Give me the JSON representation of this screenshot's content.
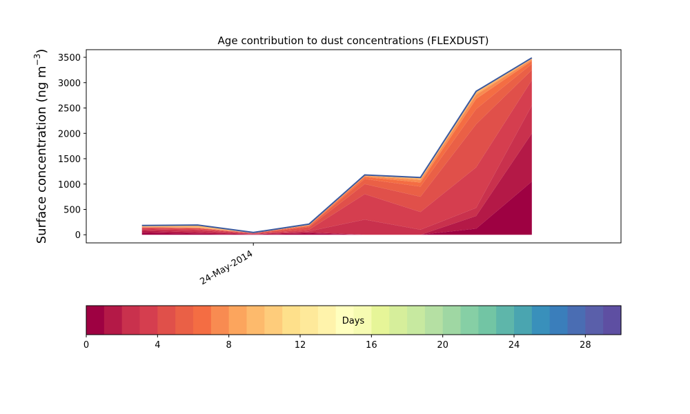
{
  "chart_data": {
    "type": "area",
    "title": "Age contribution to dust concentrations (FLEXDUST)",
    "ylabel": "Surface concentration (ng m",
    "ylabel_superscript": "−3",
    "ylabel_suffix": ")",
    "xlabel": "",
    "ylim": [
      -160,
      3650
    ],
    "yticks": [
      0,
      500,
      1000,
      1500,
      2000,
      2500,
      3000,
      3500
    ],
    "x_ticks": [
      {
        "x": 24.0,
        "label": "24-May-2014"
      }
    ],
    "x": [
      22.0,
      23.0,
      24.0,
      25.0,
      26.0,
      27.0,
      28.0,
      29.0
    ],
    "stacked_series": [
      [
        40,
        20,
        5,
        25,
        0,
        0,
        120,
        1050
      ],
      [
        40,
        30,
        5,
        25,
        0,
        0,
        250,
        950
      ],
      [
        30,
        40,
        5,
        20,
        300,
        100,
        160,
        550
      ],
      [
        20,
        20,
        10,
        30,
        500,
        350,
        800,
        500
      ],
      [
        15,
        20,
        5,
        50,
        200,
        300,
        850,
        200
      ],
      [
        5,
        5,
        5,
        20,
        100,
        200,
        300,
        120
      ],
      [
        3,
        5,
        2,
        10,
        40,
        80,
        200,
        60
      ],
      [
        3,
        5,
        2,
        10,
        20,
        50,
        80,
        30
      ],
      [
        2,
        3,
        1,
        5,
        10,
        20,
        30,
        10
      ],
      [
        25,
        45,
        5,
        15,
        10,
        30,
        40,
        20
      ]
    ],
    "total": [
      183,
      193,
      45,
      210,
      1180,
      1130,
      2830,
      3490
    ],
    "outline_color": "#3b5aa0",
    "colorbar": {
      "label": "Days",
      "ticks": [
        0,
        4,
        8,
        12,
        16,
        20,
        24,
        28
      ],
      "min": 0,
      "max": 30,
      "colors": [
        "#9e0142",
        "#b41947",
        "#c9314d",
        "#d53e4f",
        "#e0504a",
        "#ea6046",
        "#f46d43",
        "#f88b51",
        "#fca55d",
        "#fdba6c",
        "#fecc7b",
        "#fee08b",
        "#fee99a",
        "#fff3ab",
        "#ffffbf",
        "#f6fbb2",
        "#e6f598",
        "#d6ee9b",
        "#c7e9a0",
        "#b5e0a3",
        "#9fd7a3",
        "#86cfa5",
        "#72c5a4",
        "#5eb6aa",
        "#4aa5b0",
        "#3990bb",
        "#3a7ebb",
        "#4a6db3",
        "#5a5faa",
        "#5e4fa2"
      ]
    }
  }
}
